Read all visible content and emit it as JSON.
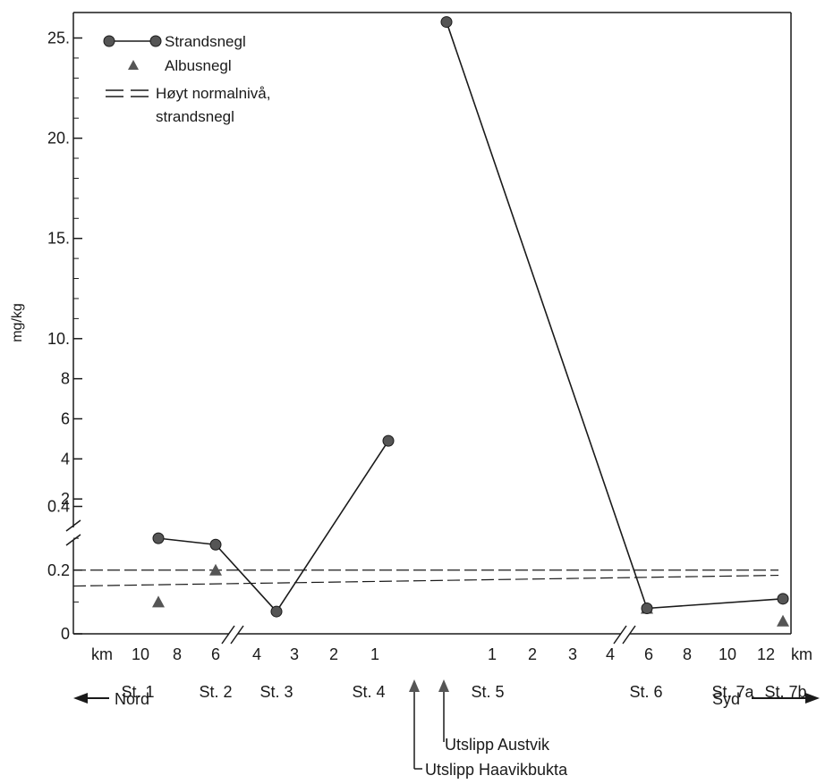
{
  "chart_data": {
    "type": "line",
    "ylabel": "mg/kg",
    "y_axis_note": "broken y-axis: lower segment 0-0.4, upper segment 2-25",
    "y_ticks_lower": [
      "0",
      "0.2",
      "0.4"
    ],
    "y_ticks_upper": [
      "2",
      "4",
      "6",
      "8",
      "10.",
      "15.",
      "20.",
      "25."
    ],
    "x_tick_labels": [
      "km",
      "10",
      "8",
      "6",
      "4",
      "3",
      "2",
      "1",
      "1",
      "2",
      "3",
      "4",
      "6",
      "8",
      "10",
      "12",
      "km"
    ],
    "stations": [
      "St. 1",
      "St. 2",
      "St. 3",
      "St. 4",
      "St. 5",
      "St. 6",
      "St. 7a",
      "St. 7b"
    ],
    "direction_left": "Nord",
    "direction_right": "Syd",
    "legend": {
      "strandsnegl": "Strandsnegl",
      "albusnegl": "Albusnegl",
      "normal_line1": "Høyt normalnivå,",
      "normal_line2": "strandsnegl"
    },
    "annotations": [
      "Utslipp Austvik",
      "Utslipp Haavikbukta"
    ],
    "series": [
      {
        "name": "Strandsnegl",
        "marker": "circle",
        "points": [
          {
            "station": "St. 1",
            "y": 0.3
          },
          {
            "station": "St. 2",
            "y": 0.28
          },
          {
            "station": "St. 3",
            "y": 0.07
          },
          {
            "station": "St. 4",
            "y": 4.9
          },
          {
            "station": "St. 5",
            "y": 25.8
          },
          {
            "station": "St. 6",
            "y": 0.08
          },
          {
            "station": "St. 7b",
            "y": 0.11
          }
        ]
      },
      {
        "name": "Albusnegl",
        "marker": "triangle",
        "points": [
          {
            "station": "St. 1",
            "y": 0.1
          },
          {
            "station": "St. 2",
            "y": 0.2
          },
          {
            "station": "St. 6",
            "y": 0.08
          },
          {
            "station": "St. 7b",
            "y": 0.04
          }
        ]
      }
    ],
    "reference_lines": [
      {
        "name": "Høyt normalnivå, strandsnegl",
        "y": 0.2,
        "style": "dashed"
      },
      {
        "name": "Høyt normalnivå, strandsnegl",
        "y": 0.15,
        "style": "dashed"
      }
    ],
    "colors": {
      "ink": "#1a1a1a",
      "marker": "#555555"
    }
  }
}
